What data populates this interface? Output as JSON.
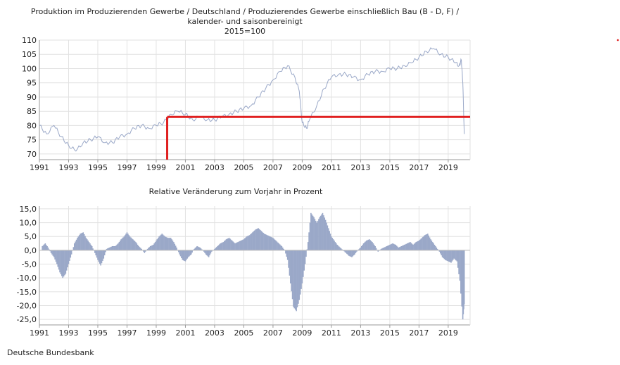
{
  "page": {
    "source": "Deutsche Bundesbank"
  },
  "colors": {
    "line": "#9aa8c8",
    "bar": "#9aa8c8",
    "grid": "#e2e2e2",
    "axis": "#9a9a9a",
    "highlight": "#e02020",
    "marker": "#e02020"
  },
  "chart_data": [
    {
      "type": "line",
      "title_lines": [
        "Produktion im Produzierenden Gewerbe / Deutschland / Produzierendes Gewerbe einschließlich Bau (B - D, F) /",
        "kalender- und saisonbereinigt",
        "2015=100"
      ],
      "xlabel": "",
      "ylabel": "",
      "xlim": [
        1991,
        2020.5
      ],
      "ylim": [
        68,
        110
      ],
      "y_ticks": [
        70,
        75,
        80,
        85,
        90,
        95,
        100,
        105,
        110
      ],
      "x_ticks": [
        1991,
        1993,
        1995,
        1997,
        1999,
        2001,
        2003,
        2005,
        2007,
        2009,
        2011,
        2013,
        2015,
        2017,
        2019
      ],
      "grid": true,
      "series": [
        {
          "x": [
            1991.0,
            1991.5,
            1992.0,
            1992.5,
            1993.0,
            1993.5,
            1994.0,
            1994.5,
            1995.0,
            1995.5,
            1996.0,
            1996.5,
            1997.0,
            1997.5,
            1998.0,
            1998.5,
            1999.0,
            1999.5,
            2000.0,
            2000.5,
            2001.0,
            2001.5,
            2002.0,
            2002.5,
            2003.0,
            2003.5,
            2004.0,
            2004.5,
            2005.0,
            2005.5,
            2006.0,
            2006.5,
            2007.0,
            2007.5,
            2008.0,
            2008.5,
            2008.8,
            2009.0,
            2009.3,
            2009.5,
            2010.0,
            2010.5,
            2011.0,
            2011.5,
            2012.0,
            2012.5,
            2013.0,
            2013.5,
            2014.0,
            2014.5,
            2015.0,
            2015.5,
            2016.0,
            2016.5,
            2017.0,
            2017.5,
            2018.0,
            2018.5,
            2019.0,
            2019.5,
            2019.75,
            2019.9,
            2020.0,
            2020.1
          ],
          "values": [
            80,
            77,
            80,
            76,
            73,
            71,
            74,
            75,
            76,
            74,
            74,
            76,
            77,
            79,
            80,
            79,
            80,
            81,
            84,
            85,
            84,
            82,
            83,
            82,
            82,
            83,
            84,
            85,
            86,
            87,
            90,
            93,
            96,
            99,
            101,
            97,
            92,
            81,
            79,
            82,
            87,
            93,
            97,
            98,
            98,
            97,
            96,
            98,
            99,
            99,
            100,
            100,
            101,
            102,
            104,
            106,
            107,
            105,
            104,
            102,
            101,
            103,
            95,
            77
          ]
        }
      ],
      "annotations": {
        "highlight_level": 83,
        "highlight_x_from": 1999.75,
        "highlight_x_to": 2020.5,
        "marker_x": 1999.75
      }
    },
    {
      "type": "bar",
      "title": "Relative Veränderung zum Vorjahr in Prozent",
      "xlabel": "",
      "ylabel": "",
      "xlim": [
        1991,
        2020.5
      ],
      "ylim": [
        -27,
        16
      ],
      "y_ticks": [
        "15,0",
        "10,0",
        "5,0",
        "0,0",
        "-5,0",
        "-10,0",
        "-15,0",
        "-20,0",
        "-25,0"
      ],
      "y_tick_values": [
        15,
        10,
        5,
        0,
        -5,
        -10,
        -15,
        -20,
        -25
      ],
      "x_ticks": [
        1991,
        1993,
        1995,
        1997,
        1999,
        2001,
        2003,
        2005,
        2007,
        2009,
        2011,
        2013,
        2015,
        2017,
        2019
      ],
      "grid": true,
      "series": [
        {
          "x": [
            1991.2,
            1991.4,
            1991.6,
            1991.8,
            1992.0,
            1992.2,
            1992.4,
            1992.6,
            1992.8,
            1993.0,
            1993.2,
            1993.4,
            1993.6,
            1993.8,
            1994.0,
            1994.2,
            1994.4,
            1994.6,
            1994.8,
            1995.0,
            1995.2,
            1995.4,
            1995.6,
            1995.8,
            1996.0,
            1996.2,
            1996.4,
            1996.6,
            1996.8,
            1997.0,
            1997.2,
            1997.4,
            1997.6,
            1997.8,
            1998.0,
            1998.2,
            1998.4,
            1998.6,
            1998.8,
            1999.0,
            1999.2,
            1999.4,
            1999.6,
            1999.8,
            2000.0,
            2000.2,
            2000.4,
            2000.6,
            2000.8,
            2001.0,
            2001.2,
            2001.4,
            2001.6,
            2001.8,
            2002.0,
            2002.2,
            2002.4,
            2002.6,
            2002.8,
            2003.0,
            2003.2,
            2003.4,
            2003.6,
            2003.8,
            2004.0,
            2004.2,
            2004.4,
            2004.6,
            2004.8,
            2005.0,
            2005.2,
            2005.4,
            2005.6,
            2005.8,
            2006.0,
            2006.2,
            2006.4,
            2006.6,
            2006.8,
            2007.0,
            2007.2,
            2007.4,
            2007.6,
            2007.8,
            2008.0,
            2008.2,
            2008.4,
            2008.6,
            2008.8,
            2009.0,
            2009.2,
            2009.4,
            2009.6,
            2009.8,
            2010.0,
            2010.2,
            2010.4,
            2010.6,
            2010.8,
            2011.0,
            2011.2,
            2011.4,
            2011.6,
            2011.8,
            2012.0,
            2012.2,
            2012.4,
            2012.6,
            2012.8,
            2013.0,
            2013.2,
            2013.4,
            2013.6,
            2013.8,
            2014.0,
            2014.2,
            2014.4,
            2014.6,
            2014.8,
            2015.0,
            2015.2,
            2015.4,
            2015.6,
            2015.8,
            2016.0,
            2016.2,
            2016.4,
            2016.6,
            2016.8,
            2017.0,
            2017.2,
            2017.4,
            2017.6,
            2017.8,
            2018.0,
            2018.2,
            2018.4,
            2018.6,
            2018.8,
            2019.0,
            2019.2,
            2019.4,
            2019.6,
            2019.8,
            2020.0,
            2020.1
          ],
          "values": [
            1.5,
            2.5,
            1.0,
            -1.0,
            -2.5,
            -5.0,
            -8.0,
            -10.0,
            -8.5,
            -5.0,
            -1.5,
            2.5,
            4.5,
            6.0,
            6.5,
            4.5,
            3.0,
            1.5,
            -1.0,
            -3.5,
            -5.5,
            -3.0,
            0.5,
            1.0,
            1.5,
            1.5,
            2.5,
            4.0,
            5.0,
            6.5,
            5.0,
            4.0,
            3.0,
            1.5,
            0.5,
            -1.0,
            0.5,
            1.5,
            2.0,
            3.5,
            5.0,
            6.0,
            5.0,
            4.5,
            4.5,
            3.0,
            1.0,
            -1.5,
            -3.5,
            -4.0,
            -2.5,
            -1.5,
            0.5,
            1.5,
            1.0,
            0.0,
            -1.5,
            -2.5,
            -0.5,
            0.5,
            1.5,
            2.5,
            3.0,
            4.0,
            4.5,
            3.5,
            2.5,
            3.0,
            3.5,
            4.0,
            5.0,
            5.5,
            6.5,
            7.5,
            8.0,
            7.0,
            6.0,
            5.5,
            5.0,
            4.5,
            3.5,
            2.5,
            1.5,
            0.0,
            -3.5,
            -12.0,
            -20.5,
            -22.0,
            -18.0,
            -12.0,
            -5.0,
            3.0,
            13.5,
            12.0,
            10.0,
            12.0,
            13.5,
            11.0,
            8.0,
            5.0,
            3.5,
            2.0,
            1.0,
            0.0,
            -1.0,
            -2.0,
            -2.5,
            -1.5,
            0.0,
            1.0,
            2.5,
            3.5,
            4.0,
            3.0,
            1.5,
            -0.5,
            0.5,
            1.0,
            1.5,
            2.0,
            2.5,
            2.0,
            1.0,
            1.5,
            2.0,
            2.5,
            3.0,
            2.0,
            3.0,
            3.5,
            4.5,
            5.5,
            6.0,
            4.0,
            2.5,
            1.0,
            -0.5,
            -2.5,
            -3.5,
            -4.0,
            -4.5,
            -3.0,
            -4.0,
            -11.0,
            -25.0,
            -19.5
          ]
        }
      ]
    }
  ]
}
